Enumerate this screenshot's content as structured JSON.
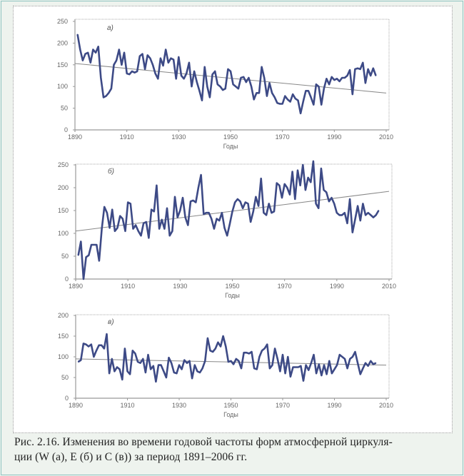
{
  "caption": {
    "line1": "Рис. 2.16. Изменения во времени годовой частоты форм атмосферной циркуля-",
    "line2": "ции (W (а), E (б) и C (в)) за период 1891–2006 гг."
  },
  "colors": {
    "series": "#3d4a86",
    "trend": "#888888",
    "axis": "#999999"
  },
  "chart_data": [
    {
      "type": "line",
      "panel_label": "а)",
      "xlabel": "Годы",
      "ylabel": "",
      "xlim": [
        1890,
        2010
      ],
      "ylim": [
        0,
        250
      ],
      "xticks": [
        "1890",
        "1910",
        "1930",
        "1950",
        "1970",
        "1990",
        "2010"
      ],
      "yticks": [
        "0",
        "50",
        "100",
        "150",
        "200",
        "250"
      ],
      "x_start": 1891,
      "values": [
        220,
        185,
        160,
        175,
        178,
        155,
        185,
        178,
        192,
        120,
        75,
        78,
        85,
        95,
        150,
        160,
        185,
        150,
        178,
        130,
        128,
        135,
        132,
        135,
        170,
        175,
        140,
        172,
        165,
        150,
        130,
        118,
        165,
        148,
        185,
        155,
        165,
        162,
        118,
        168,
        125,
        118,
        130,
        155,
        100,
        135,
        110,
        90,
        68,
        145,
        100,
        75,
        128,
        135,
        105,
        100,
        92,
        95,
        140,
        135,
        105,
        100,
        95,
        120,
        122,
        110,
        120,
        100,
        70,
        85,
        85,
        145,
        120,
        78,
        108,
        85,
        75,
        62,
        60,
        60,
        78,
        70,
        65,
        82,
        72,
        68,
        38,
        65,
        90,
        90,
        75,
        58,
        105,
        100,
        58,
        95,
        118,
        105,
        122,
        115,
        118,
        112,
        120,
        120,
        125,
        138,
        82,
        140,
        142,
        140,
        155,
        108,
        140,
        125,
        142,
        125
      ],
      "trend": {
        "x": [
          1890,
          2010
        ],
        "y": [
          153,
          85
        ]
      }
    },
    {
      "type": "line",
      "panel_label": "б)",
      "xlabel": "Годы",
      "ylabel": "",
      "xlim": [
        1890,
        2010
      ],
      "ylim": [
        0,
        250
      ],
      "xticks": [
        "1890",
        "1910",
        "1930",
        "1950",
        "1970",
        "1990",
        "2010"
      ],
      "yticks": [
        "0",
        "50",
        "100",
        "150",
        "200",
        "250"
      ],
      "x_start": 1891,
      "values": [
        52,
        82,
        0,
        48,
        52,
        75,
        75,
        75,
        40,
        110,
        158,
        145,
        112,
        152,
        105,
        112,
        138,
        132,
        105,
        168,
        165,
        110,
        118,
        105,
        95,
        122,
        125,
        90,
        152,
        148,
        205,
        110,
        130,
        110,
        155,
        95,
        105,
        180,
        135,
        150,
        178,
        135,
        118,
        170,
        172,
        168,
        200,
        228,
        142,
        145,
        145,
        132,
        110,
        132,
        128,
        145,
        112,
        95,
        120,
        148,
        168,
        175,
        170,
        155,
        168,
        165,
        125,
        148,
        180,
        160,
        220,
        145,
        140,
        165,
        145,
        148,
        210,
        205,
        178,
        208,
        200,
        185,
        235,
        175,
        238,
        205,
        250,
        195,
        222,
        212,
        258,
        165,
        155,
        242,
        195,
        190,
        170,
        178,
        165,
        145,
        140,
        140,
        145,
        122,
        175,
        102,
        130,
        160,
        128,
        165,
        140,
        145,
        140,
        135,
        140,
        150
      ],
      "trend": {
        "x": [
          1890,
          2010
        ],
        "y": [
          105,
          192
        ]
      }
    },
    {
      "type": "line",
      "panel_label": "в)",
      "xlabel": "Годы",
      "ylabel": "",
      "xlim": [
        1890,
        2010
      ],
      "ylim": [
        0,
        200
      ],
      "xticks": [
        "1890",
        "1910",
        "1930",
        "1950",
        "1970",
        "1990",
        "2010"
      ],
      "yticks": [
        "0",
        "50",
        "100",
        "150",
        "200"
      ],
      "x_start": 1891,
      "values": [
        88,
        92,
        132,
        130,
        125,
        130,
        100,
        115,
        128,
        128,
        120,
        155,
        60,
        95,
        65,
        75,
        70,
        45,
        120,
        65,
        58,
        115,
        108,
        88,
        85,
        95,
        62,
        105,
        70,
        78,
        40,
        80,
        80,
        65,
        50,
        98,
        85,
        62,
        60,
        80,
        70,
        92,
        85,
        90,
        48,
        80,
        65,
        62,
        72,
        90,
        145,
        115,
        112,
        120,
        135,
        125,
        150,
        125,
        88,
        90,
        82,
        95,
        90,
        72,
        110,
        110,
        108,
        112,
        72,
        70,
        100,
        115,
        120,
        130,
        72,
        80,
        120,
        95,
        65,
        105,
        60,
        100,
        52,
        75,
        75,
        75,
        78,
        42,
        80,
        68,
        85,
        105,
        60,
        82,
        55,
        80,
        58,
        90,
        60,
        70,
        80,
        105,
        100,
        95,
        72,
        95,
        100,
        112,
        85,
        58,
        72,
        85,
        78,
        90,
        82,
        85
      ],
      "trend": {
        "x": [
          1890,
          2010
        ],
        "y": [
          95,
          80
        ]
      }
    }
  ]
}
